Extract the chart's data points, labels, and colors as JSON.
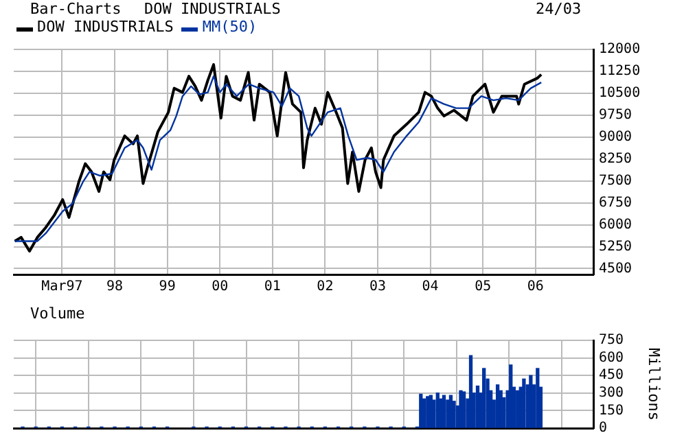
{
  "chart_data": [
    {
      "type": "line",
      "title": "Bar-Charts",
      "subtitle": "DOW INDUSTRIALS",
      "annotations": [
        "24/03"
      ],
      "legend": "top left",
      "grid": true,
      "marker": "none",
      "line_style": "solid",
      "xlim": [
        1996.08,
        2007.1
      ],
      "xticks": [
        {
          "value": 1997,
          "label": "Mar97"
        },
        {
          "value": 1998,
          "label": "98"
        },
        {
          "value": 1999,
          "label": "99"
        },
        {
          "value": 2000,
          "label": "00"
        },
        {
          "value": 2001,
          "label": "01"
        },
        {
          "value": 2002,
          "label": "02"
        },
        {
          "value": 2003,
          "label": "03"
        },
        {
          "value": 2004,
          "label": "04"
        },
        {
          "value": 2005,
          "label": "05"
        },
        {
          "value": 2006,
          "label": "06"
        }
      ],
      "ylim": [
        4300,
        12000
      ],
      "yticks": [
        4500,
        5250,
        6000,
        6750,
        7500,
        8250,
        9000,
        9750,
        10500,
        11250,
        12000
      ],
      "series": [
        {
          "name": "DOW INDUSTRIALS",
          "color": "#000000",
          "x": [
            1996.1,
            1996.22,
            1996.38,
            1996.53,
            1996.69,
            1996.85,
            1997.01,
            1997.13,
            1997.32,
            1997.44,
            1997.56,
            1997.7,
            1997.79,
            1997.91,
            1997.99,
            1998.19,
            1998.35,
            1998.43,
            1998.54,
            1998.62,
            1998.82,
            1999.02,
            1999.13,
            1999.29,
            1999.41,
            1999.53,
            1999.65,
            1999.77,
            1999.88,
            2000.02,
            2000.12,
            2000.24,
            2000.39,
            2000.54,
            2000.65,
            2000.75,
            2000.95,
            2001.09,
            2001.25,
            2001.38,
            2001.54,
            2001.59,
            2001.66,
            2001.81,
            2001.93,
            2002.05,
            2002.21,
            2002.33,
            2002.43,
            2002.52,
            2002.64,
            2002.76,
            2002.88,
            2002.96,
            2003.06,
            2003.11,
            2003.31,
            2003.55,
            2003.78,
            2003.9,
            2004.02,
            2004.14,
            2004.26,
            2004.45,
            2004.69,
            2004.81,
            2005.04,
            2005.2,
            2005.36,
            2005.64,
            2005.68,
            2005.79,
            2006.03,
            2006.11
          ],
          "values": [
            5440,
            5570,
            5100,
            5570,
            5910,
            6320,
            6860,
            6250,
            7480,
            8090,
            7810,
            7140,
            7810,
            7540,
            8220,
            9040,
            8770,
            9040,
            7410,
            7950,
            9180,
            9850,
            10670,
            10530,
            11080,
            10740,
            10260,
            10940,
            11480,
            9650,
            11080,
            10400,
            10260,
            11210,
            9580,
            10810,
            10530,
            9040,
            11210,
            10130,
            9850,
            7950,
            8900,
            9990,
            9440,
            10530,
            9850,
            9310,
            7410,
            8490,
            7140,
            8220,
            8630,
            7810,
            7270,
            8220,
            9040,
            9440,
            9850,
            10530,
            10400,
            9990,
            9720,
            9920,
            9580,
            10400,
            10810,
            9850,
            10400,
            10400,
            10130,
            10810,
            11010,
            11140
          ]
        },
        {
          "name": "MM(50)",
          "color": "#0033a0",
          "x": [
            1996.1,
            1996.53,
            1996.69,
            1997.01,
            1997.2,
            1997.4,
            1997.52,
            1997.72,
            1997.95,
            1998.19,
            1998.43,
            1998.54,
            1998.7,
            1998.86,
            1999.06,
            1999.17,
            1999.29,
            1999.45,
            1999.61,
            1999.77,
            1999.88,
            2000.0,
            2000.12,
            2000.32,
            2000.55,
            2000.75,
            2001.02,
            2001.18,
            2001.33,
            2001.5,
            2001.66,
            2001.74,
            2001.89,
            2002.05,
            2002.29,
            2002.44,
            2002.6,
            2002.8,
            2002.96,
            2003.11,
            2003.31,
            2003.55,
            2003.78,
            2004.02,
            2004.26,
            2004.49,
            2004.73,
            2004.97,
            2005.2,
            2005.44,
            2005.68,
            2005.91,
            2006.11
          ],
          "values": [
            5440,
            5440,
            5710,
            6460,
            6730,
            7480,
            7810,
            7680,
            7750,
            8630,
            8900,
            8630,
            7880,
            8900,
            9240,
            9720,
            10400,
            10740,
            10460,
            10530,
            11080,
            10530,
            10810,
            10400,
            10810,
            10670,
            10530,
            10060,
            10670,
            10400,
            9310,
            9040,
            9440,
            9850,
            9990,
            9040,
            8220,
            8290,
            8220,
            7810,
            8490,
            9040,
            9510,
            10330,
            10130,
            9990,
            9990,
            10400,
            10260,
            10330,
            10260,
            10670,
            10870
          ]
        }
      ]
    },
    {
      "type": "bar",
      "title": "Volume",
      "ylabel": "Millions",
      "grid": true,
      "legend": false,
      "tick_labels": "y",
      "xlim": [
        1996.08,
        2007.1
      ],
      "xticks": [
        1997,
        1998,
        1999,
        2000,
        2001,
        2002,
        2003,
        2004,
        2005,
        2006
      ],
      "ylim": [
        0,
        750
      ],
      "yticks": [
        0,
        150,
        300,
        450,
        600,
        750
      ],
      "series": [
        {
          "color": "#0033a0",
          "x": [
            1996.25,
            1996.5,
            1996.75,
            1997,
            1997.25,
            1997.5,
            1997.75,
            1998,
            1998.25,
            1998.5,
            1998.75,
            1999,
            1999.5,
            1999.75,
            2000,
            2000.25,
            2000.5,
            2000.75,
            2001,
            2001.25,
            2001.5,
            2001.75,
            2002,
            2002.25,
            2002.5,
            2002.75,
            2003,
            2003.25,
            2003.5,
            2003.75,
            2003.82,
            2003.88,
            2003.95,
            2004.01,
            2004.07,
            2004.14,
            2004.2,
            2004.26,
            2004.33,
            2004.39,
            2004.45,
            2004.52,
            2004.58,
            2004.64,
            2004.71,
            2004.77,
            2004.83,
            2004.9,
            2004.96,
            2005.02,
            2005.09,
            2005.15,
            2005.21,
            2005.28,
            2005.34,
            2005.4,
            2005.47,
            2005.53,
            2005.59,
            2005.66,
            2005.72,
            2005.78,
            2005.85,
            2005.91,
            2005.97,
            2006.04,
            2006.1
          ],
          "values": [
            10,
            10,
            10,
            10,
            10,
            10,
            10,
            10,
            10,
            10,
            10,
            10,
            10,
            10,
            10,
            10,
            10,
            10,
            10,
            10,
            10,
            10,
            10,
            10,
            10,
            10,
            10,
            10,
            10,
            10,
            290,
            250,
            270,
            280,
            240,
            300,
            250,
            280,
            240,
            280,
            230,
            190,
            320,
            310,
            250,
            620,
            300,
            360,
            300,
            510,
            420,
            320,
            240,
            370,
            320,
            260,
            320,
            540,
            350,
            320,
            350,
            420,
            370,
            450,
            370,
            510,
            350
          ]
        }
      ]
    }
  ]
}
